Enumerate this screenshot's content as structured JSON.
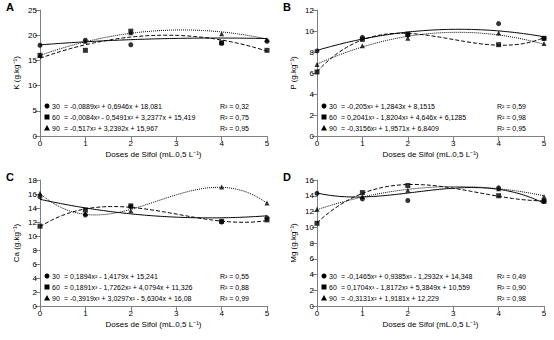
{
  "chart_data": [
    {
      "type": "scatter",
      "title": "A",
      "xlabel": "Doses de Sifol (mL.0,5 L⁻¹)",
      "ylabel": "K (g.kg⁻¹)",
      "x": [
        0,
        1,
        2,
        4,
        5
      ],
      "xlim": [
        0,
        5
      ],
      "xticks": [
        0,
        1,
        2,
        3,
        4,
        5
      ],
      "ylim": [
        0,
        25
      ],
      "yticks": [
        0,
        5,
        10,
        15,
        20,
        25
      ],
      "grid": false,
      "series": [
        {
          "name": "30",
          "color": "#000000",
          "marker": "circle",
          "line_style": "solid",
          "values": [
            18.0,
            19.0,
            18.1,
            18.4,
            18.8
          ],
          "fit": [
            18.081,
            0.6946,
            -0.0889
          ],
          "equation": "= -0,0889x² + 0,6946x + 18,081",
          "r2_label": "R² = 0,32"
        },
        {
          "name": "60",
          "color": "#000000",
          "marker": "square",
          "line_style": "dashed",
          "values": [
            16.0,
            17.0,
            20.8,
            18.5,
            17.0
          ],
          "fit": [
            15.419,
            3.2377,
            -0.5491,
            -0.0084
          ],
          "equation": "= -0,0084x³ - 0,5491x² + 3,2377x + 15,419",
          "r2_label": "R² = 0,75"
        },
        {
          "name": "90",
          "color": "#000000",
          "marker": "triangle",
          "line_style": "dotted",
          "values": [
            16.0,
            18.8,
            20.5,
            20.3,
            19.1
          ],
          "fit": [
            15.967,
            3.2392,
            -0.517
          ],
          "equation": "= -0,517x² + 3,2392x + 15,967",
          "r2_label": "R² = 0,95"
        }
      ]
    },
    {
      "type": "scatter",
      "title": "B",
      "xlabel": "Doses de Sifol (mL.0,5 L⁻¹)",
      "ylabel": "P (g.kg⁻¹)",
      "x": [
        0,
        1,
        2,
        4,
        5
      ],
      "xlim": [
        0,
        5
      ],
      "xticks": [
        0,
        1,
        2,
        3,
        4,
        5
      ],
      "ylim": [
        0,
        12
      ],
      "yticks": [
        0,
        2,
        4,
        6,
        8,
        10,
        12
      ],
      "grid": false,
      "series": [
        {
          "name": "30",
          "color": "#000000",
          "marker": "circle",
          "line_style": "solid",
          "values": [
            8.1,
            9.4,
            9.6,
            10.7,
            9.3
          ],
          "fit": [
            8.1515,
            1.2843,
            -0.205
          ],
          "equation": "= -0,205x² + 1,2843x + 8,1515",
          "r2_label": "R² = 0,59"
        },
        {
          "name": "60",
          "color": "#000000",
          "marker": "square",
          "line_style": "dashed",
          "values": [
            6.1,
            9.2,
            9.7,
            8.7,
            9.3
          ],
          "fit": [
            6.1285,
            4.646,
            -1.8204,
            0.2041
          ],
          "equation": "= 0,2041x³ - 1,8204x² + 4,646x + 6,1285",
          "r2_label": "R² = 0,98"
        },
        {
          "name": "90",
          "color": "#000000",
          "marker": "triangle",
          "line_style": "dotted",
          "values": [
            6.8,
            8.6,
            9.3,
            9.8,
            8.8
          ],
          "fit": [
            6.8409,
            1.9571,
            -0.3156
          ],
          "equation": "= -0,3156x² + 1,9571x + 6,8409",
          "r2_label": "R² = 0,95"
        }
      ]
    },
    {
      "type": "scatter",
      "title": "C",
      "xlabel": "Doses de Sifol (mL.0,5 L⁻¹)",
      "ylabel": "Ca (g.kg⁻¹)",
      "x": [
        0,
        1,
        2,
        4,
        5
      ],
      "xlim": [
        0,
        5
      ],
      "xticks": [
        0,
        1,
        2,
        3,
        4,
        5
      ],
      "ylim": [
        0,
        18
      ],
      "yticks": [
        0,
        2,
        4,
        6,
        8,
        10,
        12,
        14,
        16,
        18
      ],
      "grid": false,
      "series": [
        {
          "name": "30",
          "color": "#000000",
          "marker": "circle",
          "line_style": "solid",
          "values": [
            15.6,
            13.0,
            14.2,
            12.0,
            12.6
          ],
          "fit": [
            15.241,
            -1.4179,
            0.1894
          ],
          "equation": "= 0,1894x² - 1,4179x + 15,241",
          "r2_label": "R² = 0,55"
        },
        {
          "name": "60",
          "color": "#000000",
          "marker": "square",
          "line_style": "dashed",
          "values": [
            11.4,
            13.7,
            14.3,
            12.1,
            12.3
          ],
          "fit": [
            11.326,
            4.0794,
            -1.7262,
            0.1891
          ],
          "equation": "= 0,1891x³ - 1,7262x² + 4,0794x + 11,326",
          "r2_label": "R² = 0,88"
        },
        {
          "name": "90",
          "color": "#000000",
          "marker": "triangle",
          "line_style": "dotted",
          "values": [
            16.1,
            13.2,
            13.6,
            17.0,
            14.7
          ],
          "fit": [
            16.08,
            -5.6304,
            3.0297,
            -0.3919
          ],
          "equation": "= -0,3919x³ + 3,0297x² - 5,6304x + 16,08",
          "r2_label": "R² = 0,99"
        }
      ]
    },
    {
      "type": "scatter",
      "title": "D",
      "xlabel": "Doses de Sifol (mL.0,5 L⁻¹)",
      "ylabel": "Mg (g.kg⁻¹)",
      "x": [
        0,
        1,
        2,
        4,
        5
      ],
      "xlim": [
        0,
        5
      ],
      "xticks": [
        0,
        1,
        2,
        3,
        4,
        5
      ],
      "ylim": [
        0,
        16
      ],
      "yticks": [
        0,
        2,
        4,
        6,
        8,
        10,
        12,
        14,
        16
      ],
      "grid": false,
      "series": [
        {
          "name": "30",
          "color": "#000000",
          "marker": "circle",
          "line_style": "solid",
          "values": [
            14.3,
            13.6,
            13.4,
            15.0,
            13.3
          ],
          "fit": [
            14.348,
            -1.2932,
            0.9385,
            -0.1465
          ],
          "equation": "= -0,1465x³ + 0,9385x² - 1,2932x + 14,348",
          "r2_label": "R² = 0,49"
        },
        {
          "name": "60",
          "color": "#000000",
          "marker": "square",
          "line_style": "dashed",
          "values": [
            10.5,
            14.4,
            15.3,
            14.0,
            13.3
          ],
          "fit": [
            10.559,
            5.3849,
            -1.8172,
            0.1704
          ],
          "equation": "= 0,1704x³ - 1,8172x² + 5,3849x + 10,559",
          "r2_label": "R² = 0,90"
        },
        {
          "name": "90",
          "color": "#000000",
          "marker": "triangle",
          "line_style": "dotted",
          "values": [
            12.3,
            13.9,
            14.7,
            14.9,
            13.9
          ],
          "fit": [
            12.229,
            1.9181,
            -0.3131
          ],
          "equation": "= -0,3131x² + 1,9181x + 12,229",
          "r2_label": "R² = 0,98"
        }
      ]
    }
  ]
}
